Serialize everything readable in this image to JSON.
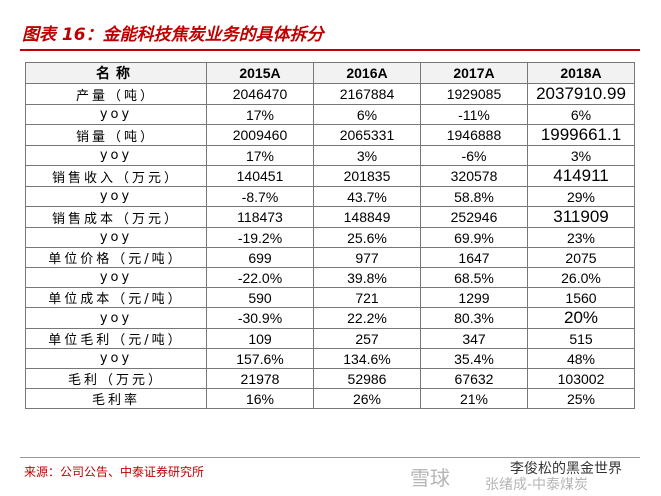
{
  "header": {
    "title": "图表 16：金能科技焦炭业务的具体拆分"
  },
  "table": {
    "columns": [
      "名称",
      "2015A",
      "2016A",
      "2017A",
      "2018A"
    ],
    "rows": [
      [
        "产量（吨）",
        "2046470",
        "2167884",
        "1929085",
        "2037910.99"
      ],
      [
        "yoy",
        "17%",
        "6%",
        "-11%",
        "6%"
      ],
      [
        "销量（吨）",
        "2009460",
        "2065331",
        "1946888",
        "1999661.1"
      ],
      [
        "yoy",
        "17%",
        "3%",
        "-6%",
        "3%"
      ],
      [
        "销售收入（万元）",
        "140451",
        "201835",
        "320578",
        "414911"
      ],
      [
        "yoy",
        "-8.7%",
        "43.7%",
        "58.8%",
        "29%"
      ],
      [
        "销售成本（万元）",
        "118473",
        "148849",
        "252946",
        "311909"
      ],
      [
        "yoy",
        "-19.2%",
        "25.6%",
        "69.9%",
        "23%"
      ],
      [
        "单位价格（元/吨）",
        "699",
        "977",
        "1647",
        "2075"
      ],
      [
        "yoy",
        "-22.0%",
        "39.8%",
        "68.5%",
        "26.0%"
      ],
      [
        "单位成本（元/吨）",
        "590",
        "721",
        "1299",
        "1560"
      ],
      [
        "yoy",
        "-30.9%",
        "22.2%",
        "80.3%",
        "20%"
      ],
      [
        "单位毛利（元/吨）",
        "109",
        "257",
        "347",
        "515"
      ],
      [
        "yoy",
        "157.6%",
        "134.6%",
        "35.4%",
        "48%"
      ],
      [
        "毛利（万元）",
        "21978",
        "52986",
        "67632",
        "103002"
      ],
      [
        "毛利率",
        "16%",
        "26%",
        "21%",
        "25%"
      ]
    ]
  },
  "footer": {
    "source": "来源：公司公告、中泰证券研究所",
    "watermark": "雪球",
    "watermark_author": "李俊松的黑金世界",
    "watermark_sub": "张绪成-中泰煤炭"
  }
}
